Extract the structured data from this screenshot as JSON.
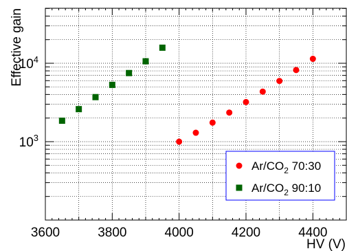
{
  "chart_data": {
    "type": "scatter",
    "xlabel": "HV (V)",
    "ylabel": "Effective gain",
    "xlim": [
      3600,
      4500
    ],
    "ylim": [
      100,
      60000
    ],
    "yscale": "log",
    "grid": true,
    "legend_position": "bottom-right",
    "x_ticks": [
      3600,
      3800,
      4000,
      4200,
      4400
    ],
    "x_tick_labels": [
      "3600",
      "3800",
      "4000",
      "4200",
      "4400"
    ],
    "series": [
      {
        "name": "Ar/CO2 70:30",
        "legend_main": "Ar/CO",
        "legend_sub": "2",
        "legend_rest": " 70:30",
        "marker": "circle",
        "color": "#ff0000",
        "x": [
          4000,
          4050,
          4100,
          4150,
          4200,
          4250,
          4300,
          4350,
          4400
        ],
        "y": [
          1000,
          1300,
          1750,
          2350,
          3200,
          4350,
          5950,
          8200,
          11400
        ]
      },
      {
        "name": "Ar/CO2 90:10",
        "legend_main": "Ar/CO",
        "legend_sub": "2",
        "legend_rest": " 90:10",
        "marker": "square",
        "color": "#006400",
        "x": [
          3650,
          3700,
          3750,
          3800,
          3850,
          3900,
          3950
        ],
        "y": [
          1850,
          2600,
          3700,
          5300,
          7500,
          10600,
          15800
        ]
      }
    ]
  }
}
